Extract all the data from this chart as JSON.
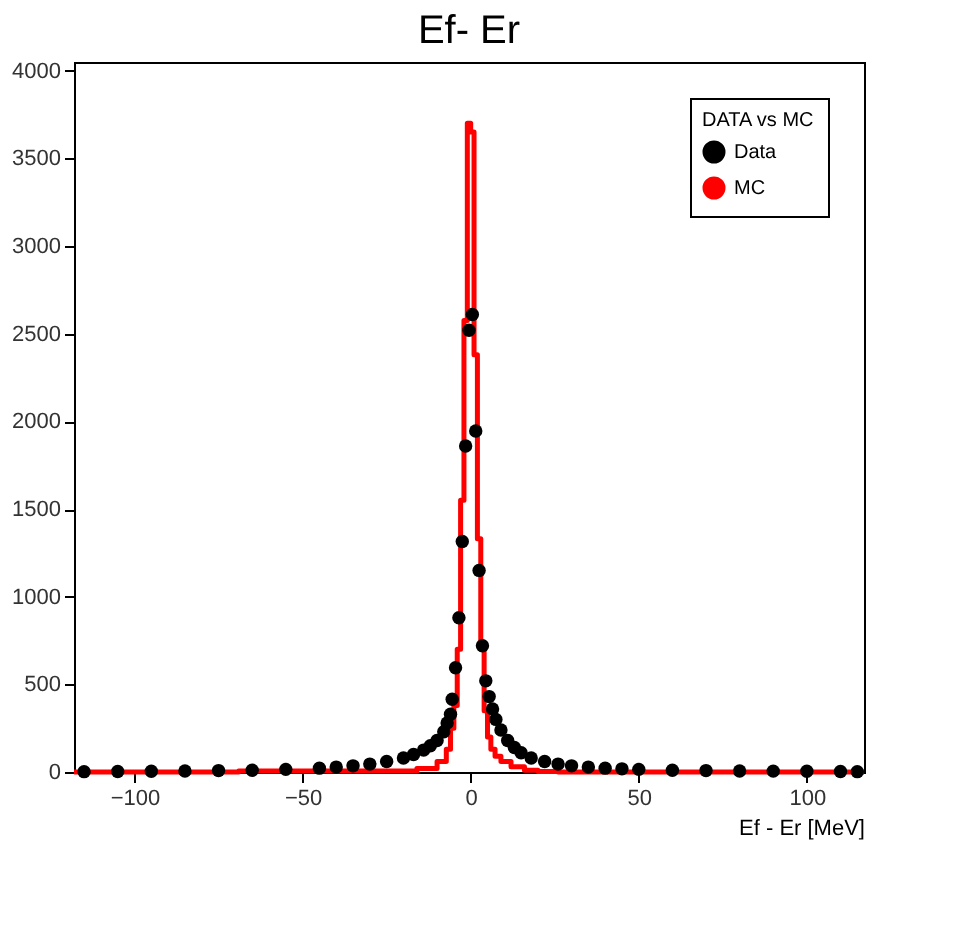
{
  "chart_data": {
    "type": "scatter",
    "title": "Ef- Er",
    "xlabel": "Ef - Er [MeV]",
    "legend_title": "DATA vs MC",
    "legend": "top right",
    "grid": false,
    "xlim": [
      -118,
      117
    ],
    "xticks": [
      -100,
      -50,
      0,
      50,
      100
    ],
    "ylim": [
      0,
      4050
    ],
    "yticks": [
      0,
      500,
      1000,
      1500,
      2000,
      2500,
      3000,
      3500,
      4000
    ],
    "series": [
      {
        "name": "Data",
        "marker": "circle",
        "color": "#000000",
        "x": [
          -115,
          -105,
          -95,
          -85,
          -75,
          -65,
          -55,
          -45,
          -40,
          -35,
          -30,
          -25,
          -20,
          -17,
          -14,
          -12,
          -10,
          -8,
          -7,
          -6,
          -5.5,
          -4.5,
          -3.5,
          -2.5,
          -1.5,
          -0.5,
          0.5,
          1.5,
          2.5,
          3.5,
          4.5,
          5.5,
          6.5,
          7.5,
          9,
          11,
          13,
          15,
          18,
          22,
          26,
          30,
          35,
          40,
          45,
          50,
          60,
          70,
          80,
          90,
          100,
          110,
          115
        ],
        "values": [
          2,
          3,
          4,
          6,
          8,
          10,
          15,
          22,
          28,
          35,
          45,
          60,
          80,
          100,
          125,
          150,
          180,
          230,
          280,
          330,
          415,
          595,
          880,
          1315,
          1860,
          2520,
          2610,
          1945,
          1150,
          720,
          520,
          430,
          360,
          300,
          240,
          180,
          140,
          110,
          80,
          60,
          45,
          35,
          28,
          22,
          18,
          15,
          10,
          8,
          6,
          5,
          4,
          3,
          2
        ]
      },
      {
        "name": "MC",
        "type": "step",
        "marker": "none",
        "color": "#ff0000",
        "x": [
          -118,
          -20,
          -12,
          -8,
          -6.5,
          -5.5,
          -4.5,
          -3.5,
          -2.5,
          -1.5,
          -0.5,
          0.5,
          1.5,
          2.5,
          3.5,
          4.5,
          5.5,
          6.5,
          8,
          10,
          14,
          18,
          22,
          30,
          117
        ],
        "values": [
          0,
          5,
          20,
          60,
          130,
          250,
          380,
          700,
          1550,
          2575,
          3700,
          3650,
          2380,
          1330,
          700,
          350,
          200,
          130,
          90,
          60,
          30,
          10,
          3,
          0,
          0
        ]
      }
    ]
  }
}
